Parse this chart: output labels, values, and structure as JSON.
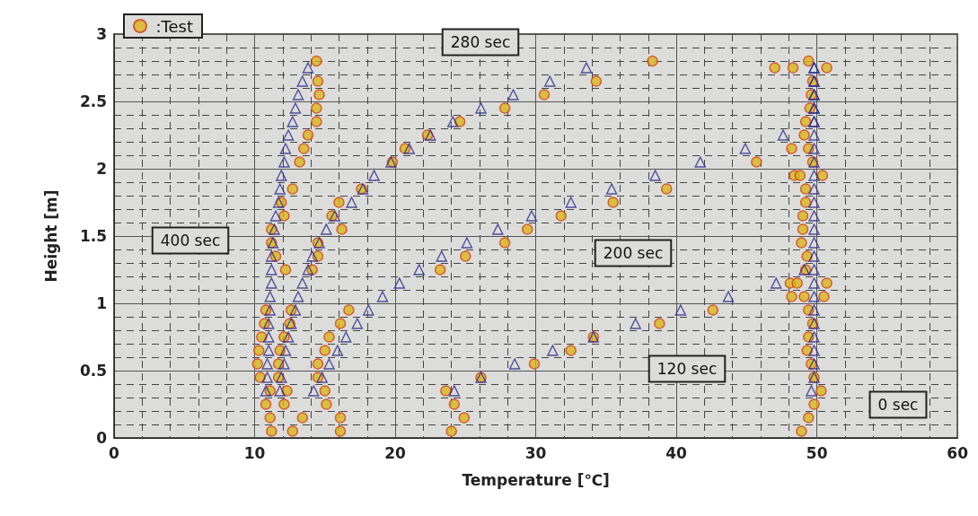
{
  "chart_data": {
    "type": "scatter",
    "xlabel": "Temperature [℃]",
    "ylabel": "Height [m]",
    "xlim": [
      0,
      60
    ],
    "xticks": [
      0,
      10,
      20,
      30,
      40,
      50,
      60
    ],
    "ylim": [
      0,
      3
    ],
    "yticks": [
      0,
      0.5,
      1,
      1.5,
      2,
      2.5,
      3
    ],
    "grid": true,
    "legend": "top left",
    "annotations": [
      "280 sec",
      "400 sec",
      "200 sec",
      "120 sec",
      "0 sec"
    ],
    "series": [
      {
        "name": ":Test",
        "color": "#d9b51c",
        "marker": "circle",
        "x": [
          11.2,
          11.1,
          10.8,
          11.1,
          10.4,
          10.2,
          10.3,
          10.5,
          10.7,
          10.8,
          12.2,
          11.5,
          11.2,
          11.2,
          12.1,
          11.9,
          12.7,
          13.2,
          13.5,
          13.8,
          14.4,
          14.4,
          14.6,
          14.5,
          14.4,
          12.7,
          13.4,
          12.1,
          12.3,
          11.7,
          11.7,
          11.8,
          12.1,
          12.5,
          12.6,
          14.1,
          14.5,
          14.5,
          16.2,
          15.5,
          16.0,
          17.6,
          19.8,
          20.7,
          22.3,
          24.6,
          27.8,
          30.6,
          34.3,
          38.3,
          16.1,
          16.1,
          15.1,
          15.0,
          14.5,
          14.5,
          15.0,
          15.3,
          16.1,
          16.7,
          23.2,
          25.0,
          27.8,
          29.4,
          31.8,
          35.5,
          39.3,
          45.7,
          48.2,
          24.0,
          24.9,
          24.2,
          23.6,
          26.1,
          29.9,
          32.5,
          34.1,
          38.8,
          42.6,
          48.2,
          48.1,
          48.9,
          49.4,
          49.8,
          50.3,
          49.8,
          49.6,
          49.3,
          49.4,
          49.7,
          49.4,
          49.1,
          50.5,
          48.6,
          50.7,
          49.2,
          49.3,
          48.9,
          49.0,
          49.0,
          49.2,
          49.2,
          48.4,
          48.8,
          50.4,
          49.7,
          49.4,
          49.1,
          49.2,
          49.5,
          49.6,
          49.7,
          47.0,
          48.3,
          50.7,
          49.4
        ],
        "values": [
          0.05,
          0.15,
          0.25,
          0.35,
          0.45,
          0.55,
          0.65,
          0.75,
          0.85,
          0.95,
          1.25,
          1.35,
          1.45,
          1.55,
          1.65,
          1.75,
          1.85,
          2.05,
          2.15,
          2.25,
          2.35,
          2.45,
          2.55,
          2.65,
          2.8,
          0.05,
          0.15,
          0.25,
          0.35,
          0.45,
          0.55,
          0.65,
          0.75,
          0.85,
          0.95,
          1.25,
          1.35,
          1.45,
          1.55,
          1.65,
          1.75,
          1.85,
          2.05,
          2.15,
          2.25,
          2.35,
          2.45,
          2.55,
          2.65,
          2.8,
          0.05,
          0.15,
          0.25,
          0.35,
          0.45,
          0.55,
          0.65,
          0.75,
          0.85,
          0.95,
          1.25,
          1.35,
          1.45,
          1.55,
          1.65,
          1.75,
          1.85,
          2.05,
          2.15,
          0.05,
          0.15,
          0.25,
          0.35,
          0.45,
          0.55,
          0.65,
          0.75,
          0.85,
          0.95,
          1.05,
          1.15,
          0.05,
          0.15,
          0.25,
          0.35,
          0.45,
          0.55,
          0.65,
          0.75,
          0.85,
          0.95,
          1.05,
          1.05,
          1.15,
          1.15,
          1.25,
          1.35,
          1.45,
          1.55,
          1.65,
          1.75,
          1.85,
          1.95,
          1.95,
          1.95,
          2.05,
          2.15,
          2.25,
          2.35,
          2.45,
          2.55,
          2.65,
          2.75,
          2.75,
          2.75,
          2.8
        ]
      },
      {
        "color": "#2a2a8c",
        "marker": "triangle",
        "x": [
          10.8,
          10.9,
          10.9,
          11.0,
          11.0,
          11.0,
          11.1,
          11.1,
          11.2,
          11.2,
          11.2,
          11.3,
          11.4,
          11.5,
          11.7,
          11.8,
          11.9,
          12.1,
          12.2,
          12.4,
          12.7,
          12.9,
          13.1,
          13.4,
          13.8,
          11.8,
          11.9,
          12.1,
          12.2,
          12.4,
          12.6,
          12.9,
          13.1,
          13.4,
          13.8,
          14.1,
          14.6,
          15.1,
          15.7,
          16.9,
          17.7,
          18.5,
          19.7,
          21.0,
          22.5,
          24.1,
          26.1,
          28.4,
          31.0,
          33.6,
          14.2,
          14.8,
          15.3,
          15.9,
          16.5,
          17.3,
          18.1,
          19.1,
          20.3,
          21.7,
          23.3,
          25.1,
          27.3,
          29.7,
          32.5,
          35.4,
          38.5,
          41.7,
          44.9,
          47.6,
          49.8,
          49.8,
          49.8,
          49.8,
          49.8,
          24.2,
          26.1,
          28.5,
          31.2,
          34.1,
          37.1,
          40.3,
          43.7,
          47.1,
          49.1,
          49.8,
          49.8,
          49.8,
          49.8,
          49.8,
          49.8,
          49.8,
          49.8,
          49.8,
          49.8,
          49.8,
          49.8,
          49.8,
          49.8,
          49.8,
          49.6,
          49.8,
          49.8,
          49.8,
          49.8,
          49.8,
          49.8,
          49.8,
          49.8,
          49.8
        ],
        "values": [
          0.35,
          0.45,
          0.55,
          0.65,
          0.75,
          0.85,
          0.95,
          1.05,
          1.15,
          1.25,
          1.35,
          1.45,
          1.55,
          1.65,
          1.75,
          1.85,
          1.95,
          2.05,
          2.15,
          2.25,
          2.35,
          2.45,
          2.55,
          2.65,
          2.75,
          0.35,
          0.45,
          0.55,
          0.65,
          0.75,
          0.85,
          0.95,
          1.05,
          1.15,
          1.25,
          1.35,
          1.45,
          1.55,
          1.65,
          1.75,
          1.85,
          1.95,
          2.05,
          2.15,
          2.25,
          2.35,
          2.45,
          2.55,
          2.65,
          2.75,
          0.35,
          0.45,
          0.55,
          0.65,
          0.75,
          0.85,
          0.95,
          1.05,
          1.15,
          1.25,
          1.35,
          1.45,
          1.55,
          1.65,
          1.75,
          1.85,
          1.95,
          2.05,
          2.15,
          2.25,
          2.35,
          2.45,
          2.55,
          2.65,
          2.75,
          0.35,
          0.45,
          0.55,
          0.65,
          0.75,
          0.85,
          0.95,
          1.05,
          1.15,
          1.25,
          1.35,
          1.45,
          1.55,
          1.65,
          1.75,
          1.85,
          1.95,
          2.05,
          2.15,
          2.25,
          2.35,
          2.45,
          2.55,
          2.65,
          2.75,
          0.35,
          0.45,
          0.55,
          0.65,
          0.75,
          0.85,
          0.95,
          1.05,
          1.15,
          1.25
        ]
      }
    ]
  }
}
